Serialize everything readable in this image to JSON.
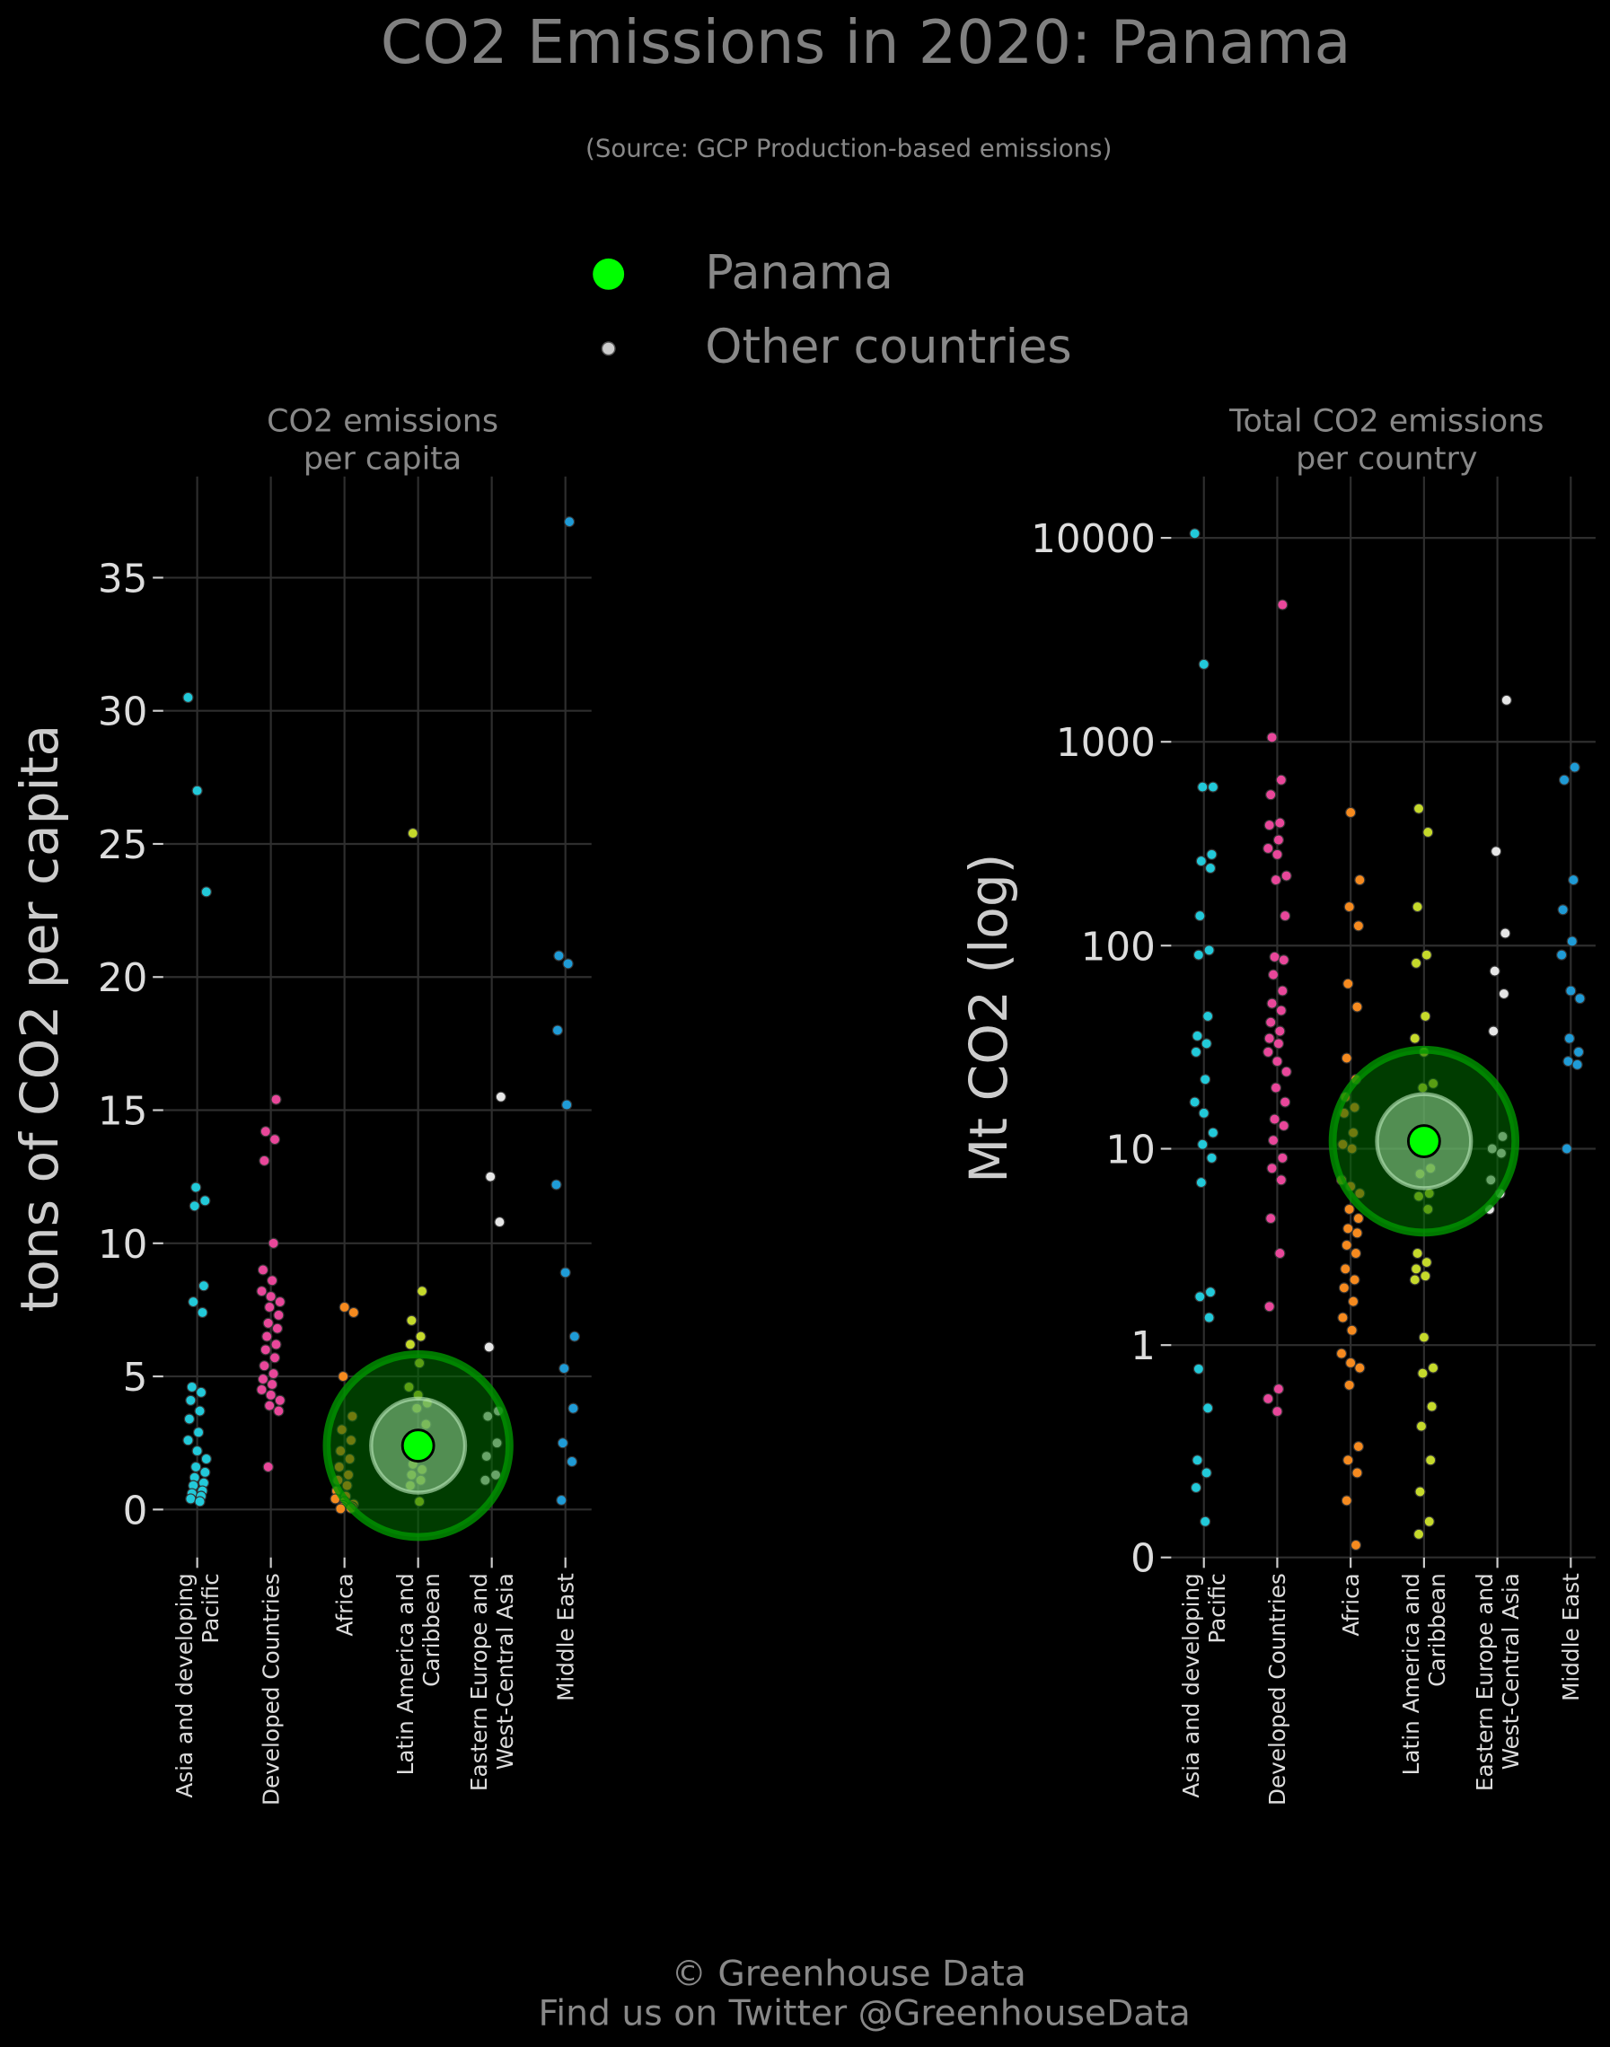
{
  "title": "CO2 Emissions in 2020: Panama",
  "subtitle": "(Source: GCP Production-based emissions)",
  "legend": [
    {
      "label": "Panama",
      "color": "#00ff00"
    },
    {
      "label": "Other countries",
      "color": "#cccccc"
    }
  ],
  "footer": [
    "© Greenhouse Data",
    "Find us on Twitter @GreenhouseData"
  ],
  "chart_data": [
    {
      "type": "strip",
      "title": "CO2 emissions\nper capita",
      "y_label": "tons of CO2 per capita",
      "yscale": "linear",
      "ylim": [
        -1.8,
        38.8
      ],
      "yticks": [
        0,
        5,
        10,
        15,
        20,
        25,
        30,
        35
      ],
      "grid": true,
      "categories": [
        "Asia and developing\nPacific",
        "Developed Countries",
        "Africa",
        "Latin America and\nCaribbean",
        "Eastern Europe and\nWest-Central Asia",
        "Middle East"
      ],
      "colors": [
        "#22c9d9",
        "#e8479a",
        "#f58a1f",
        "#c5d92b",
        "#e6e6e6",
        "#1f9bd6"
      ],
      "values": [
        [
          30.5,
          27,
          23.2,
          12.1,
          11.6,
          11.4,
          8.4,
          7.8,
          7.4,
          4.6,
          4.4,
          4.1,
          3.7,
          3.4,
          2.9,
          2.6,
          2.2,
          1.9,
          1.6,
          1.4,
          1.2,
          1.0,
          0.9,
          0.7,
          0.6,
          0.5,
          0.4,
          0.3
        ],
        [
          15.4,
          14.2,
          13.9,
          13.1,
          10.0,
          9.0,
          8.6,
          8.2,
          8.0,
          7.8,
          7.6,
          7.3,
          7.0,
          6.8,
          6.5,
          6.2,
          6.0,
          5.7,
          5.4,
          5.1,
          4.9,
          4.7,
          4.5,
          4.3,
          4.1,
          3.9,
          3.7,
          1.6
        ],
        [
          7.6,
          7.4,
          5.0,
          3.5,
          3.0,
          2.6,
          2.2,
          1.9,
          1.6,
          1.3,
          1.1,
          0.9,
          0.7,
          0.5,
          0.4,
          0.3,
          0.2,
          0.15,
          0.1,
          0.08,
          0.05,
          0.03
        ],
        [
          25.4,
          8.2,
          7.1,
          6.5,
          6.2,
          5.5,
          4.6,
          4.3,
          4.0,
          3.8,
          3.2,
          2.8,
          2.5,
          2.2,
          2.0,
          1.7,
          1.5,
          1.3,
          1.1,
          0.9,
          0.3
        ],
        [
          15.5,
          12.5,
          10.8,
          6.1,
          3.7,
          3.5,
          2.5,
          2.0,
          1.3,
          1.1
        ],
        [
          37.1,
          20.8,
          20.5,
          18.0,
          15.2,
          12.2,
          8.9,
          6.5,
          5.3,
          3.8,
          2.5,
          1.8,
          0.35
        ]
      ],
      "highlight": {
        "name": "Panama",
        "category": "Latin America and\nCaribbean",
        "value": 2.4,
        "color": "#00ff00"
      }
    },
    {
      "type": "strip",
      "title": "Total CO2 emissions\nper country",
      "y_label": "Mt CO2 (log)",
      "yscale": "log",
      "ylim": [
        0,
        20000
      ],
      "yticks": [
        0,
        1,
        10,
        100,
        1000,
        10000
      ],
      "grid": true,
      "categories": [
        "Asia and developing\nPacific",
        "Developed Countries",
        "Africa",
        "Latin America and\nCaribbean",
        "Eastern Europe and\nWest-Central Asia",
        "Middle East"
      ],
      "colors": [
        "#22c9d9",
        "#e8479a",
        "#f58a1f",
        "#c5d92b",
        "#e6e6e6",
        "#1f9bd6"
      ],
      "values": [
        [
          10500,
          2400,
          600,
          600,
          280,
          260,
          240,
          140,
          95,
          90,
          45,
          36,
          33,
          30,
          22,
          17,
          15,
          12,
          10.5,
          9,
          6.8,
          1.9,
          1.8,
          1.4,
          0.74,
          0.44,
          0.2,
          0.16,
          0.12,
          0.05
        ],
        [
          4700,
          1050,
          650,
          550,
          400,
          390,
          330,
          300,
          280,
          220,
          210,
          140,
          88,
          85,
          72,
          60,
          52,
          48,
          42,
          38,
          35,
          33,
          30,
          27,
          24,
          20,
          17,
          14,
          13,
          11,
          9,
          8,
          7,
          4.5,
          3,
          1.6,
          0.57,
          0.5,
          0.42
        ],
        [
          450,
          210,
          155,
          125,
          65,
          50,
          28,
          22,
          18,
          16,
          15,
          12,
          10.5,
          10,
          7,
          6.5,
          6,
          5,
          4.5,
          4,
          3.8,
          3.3,
          3.0,
          2.5,
          2.2,
          2.0,
          1.7,
          1.4,
          1.2,
          0.9,
          0.8,
          0.75,
          0.6,
          0.25,
          0.2,
          0.16,
          0.09,
          0.015
        ],
        [
          470,
          360,
          155,
          90,
          82,
          45,
          35,
          30,
          21,
          20,
          11.5,
          10.5,
          8,
          7.5,
          6,
          5.8,
          5,
          3,
          2.7,
          2.5,
          2.3,
          2.2,
          1.1,
          0.75,
          0.7,
          0.45,
          0.34,
          0.2,
          0.11,
          0.05,
          0.03
        ],
        [
          1600,
          290,
          115,
          75,
          58,
          38,
          11.5,
          10,
          9.5,
          7,
          6,
          5
        ],
        [
          750,
          650,
          210,
          150,
          105,
          90,
          60,
          55,
          35,
          30,
          27,
          26,
          10
        ]
      ],
      "highlight": {
        "name": "Panama",
        "category": "Latin America and\nCaribbean",
        "value": 10.9,
        "color": "#00ff00"
      }
    }
  ]
}
